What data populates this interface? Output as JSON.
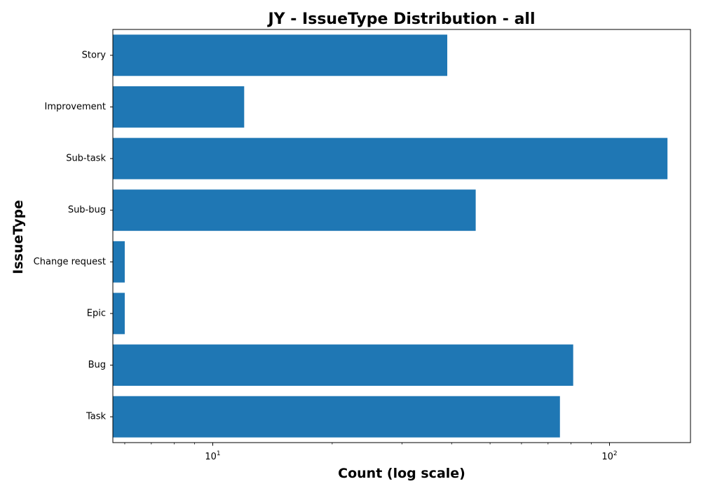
{
  "chart_data": {
    "type": "bar",
    "orientation": "horizontal",
    "title": "JY - IssueType Distribution - all",
    "xlabel": "Count (log scale)",
    "ylabel": "IssueType",
    "x_scale": "log",
    "xlim": [
      5.6,
      160
    ],
    "grid": false,
    "categories": [
      "Task",
      "Bug",
      "Epic",
      "Change request",
      "Sub-bug",
      "Sub-task",
      "Improvement",
      "Story"
    ],
    "values": [
      75,
      81,
      6,
      6,
      46,
      140,
      12,
      39
    ],
    "bar_color": "#1f77b4",
    "x_ticks": [
      {
        "value": 10,
        "base": "10",
        "exponent": "1"
      },
      {
        "value": 100,
        "base": "10",
        "exponent": "2"
      }
    ]
  }
}
